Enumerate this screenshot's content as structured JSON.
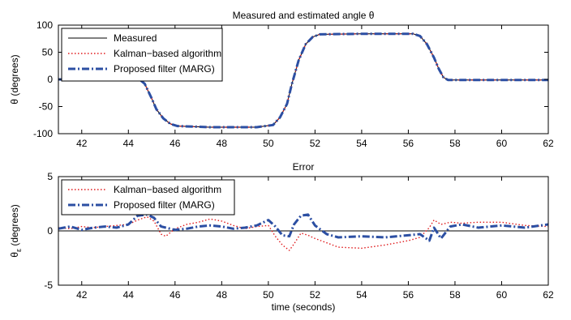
{
  "chart_data": [
    {
      "type": "line",
      "title": "Measured and estimated angle θ",
      "xlabel": "",
      "ylabel": "θ (degrees)",
      "xlim": [
        41,
        62
      ],
      "ylim": [
        -100,
        100
      ],
      "xticks": [
        42,
        44,
        46,
        48,
        50,
        52,
        54,
        56,
        58,
        60,
        62
      ],
      "yticks": [
        -100,
        -50,
        0,
        50,
        100
      ],
      "legend_position": "top-left",
      "series": [
        {
          "name": "Measured",
          "color": "#000000",
          "style": "solid",
          "x": [
            41,
            44.5,
            44.7,
            45.0,
            45.2,
            45.5,
            45.8,
            46.1,
            47.5,
            49.5,
            50.2,
            50.5,
            50.8,
            51.0,
            51.3,
            51.6,
            51.9,
            52.2,
            54,
            56.2,
            56.5,
            56.8,
            57.1,
            57.3,
            57.5,
            57.7,
            58,
            62
          ],
          "y": [
            0,
            -1,
            -8,
            -35,
            -55,
            -72,
            -82,
            -86,
            -88,
            -88,
            -84,
            -70,
            -45,
            -10,
            35,
            65,
            78,
            83,
            84,
            84,
            80,
            65,
            40,
            20,
            4,
            -1,
            -1,
            -1
          ]
        },
        {
          "name": "Kalman−based algorithm",
          "color": "#e0191b",
          "style": "dotted",
          "x": [
            41,
            44.5,
            44.7,
            45.0,
            45.2,
            45.5,
            45.8,
            46.1,
            47.5,
            49.5,
            50.2,
            50.5,
            50.8,
            51.0,
            51.3,
            51.6,
            51.9,
            52.2,
            54,
            56.2,
            56.5,
            56.8,
            57.1,
            57.3,
            57.5,
            57.7,
            58,
            62
          ],
          "y": [
            0,
            -1,
            -8,
            -35,
            -55,
            -72,
            -82,
            -86,
            -88,
            -88,
            -84,
            -70,
            -45,
            -10,
            35,
            65,
            78,
            83,
            84,
            84,
            80,
            65,
            40,
            20,
            4,
            -1,
            -1,
            -1
          ]
        },
        {
          "name": "Proposed filter (MARG)",
          "color": "#2c4fa3",
          "style": "dash-dot",
          "x": [
            41,
            44.5,
            44.7,
            45.0,
            45.2,
            45.5,
            45.8,
            46.1,
            47.5,
            49.5,
            50.2,
            50.5,
            50.8,
            51.0,
            51.3,
            51.6,
            51.9,
            52.2,
            54,
            56.2,
            56.5,
            56.8,
            57.1,
            57.3,
            57.5,
            57.7,
            58,
            62
          ],
          "y": [
            0,
            -1,
            -8,
            -35,
            -55,
            -72,
            -82,
            -86,
            -88,
            -88,
            -84,
            -70,
            -45,
            -10,
            35,
            65,
            78,
            83,
            84,
            84,
            80,
            65,
            40,
            20,
            4,
            -1,
            -1,
            -1
          ]
        }
      ]
    },
    {
      "type": "line",
      "title": "Error",
      "xlabel": "time (seconds)",
      "ylabel": "θ",
      "ylabel_subscript": "ε",
      "ylabel_suffix": " (degrees)",
      "xlim": [
        41,
        62
      ],
      "ylim": [
        -5,
        5
      ],
      "xticks": [
        42,
        44,
        46,
        48,
        50,
        52,
        54,
        56,
        58,
        60,
        62
      ],
      "yticks": [
        -5,
        0,
        5
      ],
      "legend_position": "top-left",
      "zero_line": true,
      "series": [
        {
          "name": "Kalman−based algorithm",
          "color": "#e0191b",
          "style": "dotted",
          "x": [
            41,
            41.5,
            42,
            42.5,
            43,
            43.5,
            44,
            44.4,
            44.8,
            45.1,
            45.4,
            45.6,
            46,
            46.5,
            47,
            47.5,
            48,
            48.5,
            49,
            49.5,
            50,
            50.3,
            50.6,
            50.9,
            51.1,
            51.4,
            51.7,
            52,
            52.5,
            53,
            54,
            55,
            56,
            56.5,
            56.9,
            57.1,
            57.4,
            57.8,
            58.3,
            59,
            60,
            61,
            62
          ],
          "y": [
            0.3,
            0.2,
            0.4,
            0.3,
            0.4,
            0.5,
            0.6,
            1.0,
            1.3,
            0.9,
            -0.3,
            -0.5,
            0.2,
            0.6,
            0.8,
            1.1,
            0.9,
            0.5,
            0.2,
            0.4,
            0.5,
            -0.5,
            -1.3,
            -1.8,
            -1.2,
            -0.2,
            -0.4,
            -0.7,
            -1.1,
            -1.5,
            -1.6,
            -1.3,
            -0.9,
            -0.6,
            0.3,
            1.0,
            0.6,
            0.8,
            0.7,
            0.8,
            0.8,
            0.5,
            0.4
          ]
        },
        {
          "name": "Proposed filter (MARG)",
          "color": "#2c4fa3",
          "style": "dash-dot",
          "x": [
            41,
            41.5,
            42,
            42.5,
            43,
            43.5,
            44,
            44.4,
            44.8,
            45.1,
            45.4,
            45.6,
            46,
            46.5,
            47,
            47.5,
            48,
            48.5,
            49,
            49.5,
            50,
            50.3,
            50.6,
            50.9,
            51.1,
            51.4,
            51.7,
            52,
            52.5,
            53,
            54,
            55,
            56,
            56.5,
            56.9,
            57.1,
            57.4,
            57.8,
            58.3,
            59,
            60,
            61,
            62
          ],
          "y": [
            0.2,
            0.4,
            0.1,
            0.3,
            0.4,
            0.3,
            0.6,
            1.4,
            1.5,
            1.2,
            0.4,
            0.3,
            0.1,
            0.2,
            0.4,
            0.5,
            0.4,
            0.2,
            0.3,
            0.5,
            1.0,
            0.4,
            -0.4,
            -0.5,
            0.6,
            1.4,
            1.5,
            0.5,
            -0.3,
            -0.6,
            -0.5,
            -0.6,
            -0.4,
            -0.3,
            -0.9,
            0.3,
            -0.7,
            0.4,
            0.6,
            0.3,
            0.5,
            0.3,
            0.6
          ]
        }
      ]
    }
  ]
}
